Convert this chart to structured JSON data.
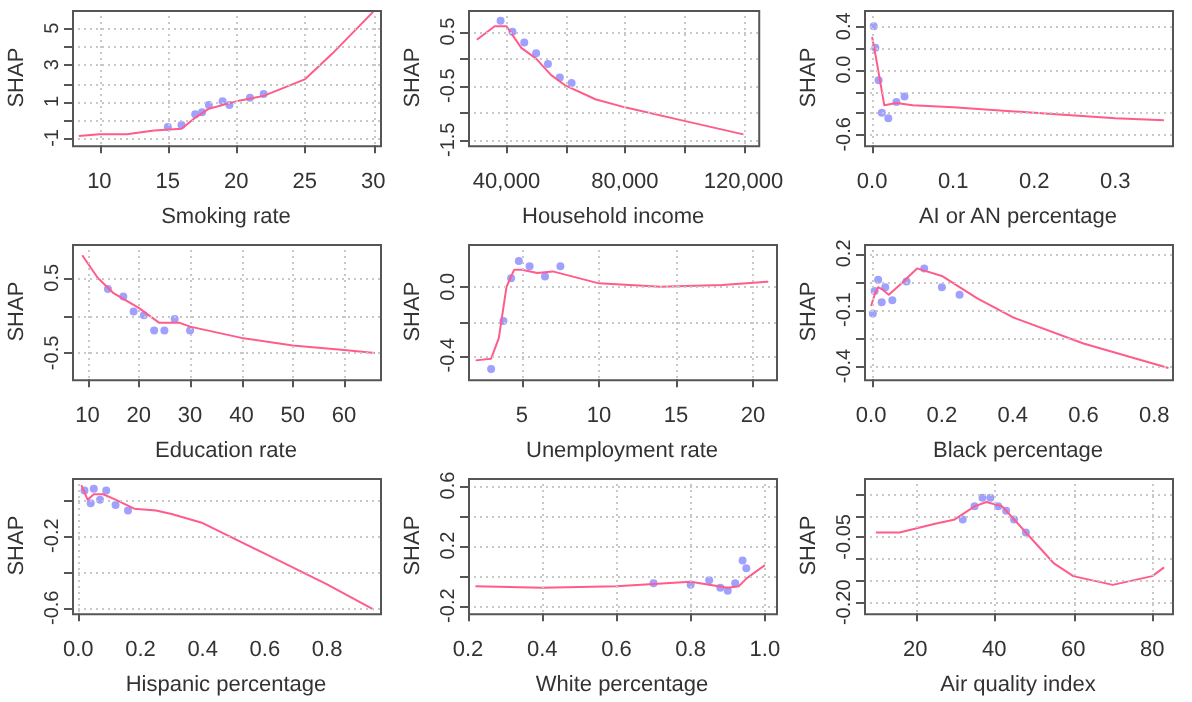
{
  "chart_data": [
    {
      "type": "line",
      "xlabel": "Smoking rate",
      "ylabel": "SHAP",
      "grid": true,
      "xlim": [
        8,
        30.5
      ],
      "xticks": [
        10,
        15,
        20,
        25,
        30
      ],
      "ylim": [
        -1.4,
        6
      ],
      "yticks": [
        -1,
        {
          "value": 0,
          "label": null
        },
        1,
        {
          "value": 2,
          "label": null
        },
        3,
        {
          "value": 4,
          "label": null
        },
        5
      ],
      "series": [
        {
          "type": "scatter",
          "color": "#a0a0ff",
          "x": [
            15,
            16,
            17,
            17.5,
            18,
            19,
            19.5,
            21,
            22
          ],
          "values": [
            -0.4,
            -0.3,
            0.3,
            0.4,
            0.8,
            1.0,
            0.8,
            1.2,
            1.4
          ]
        },
        {
          "type": "line",
          "color": "#ff5c8a",
          "x": [
            8.5,
            10,
            12,
            14,
            16,
            17,
            18,
            20,
            22,
            24,
            25,
            27,
            30
          ],
          "values": [
            -0.9,
            -0.8,
            -0.8,
            -0.6,
            -0.5,
            0.1,
            0.6,
            1.0,
            1.3,
            1.9,
            2.2,
            3.6,
            5.9
          ]
        }
      ]
    },
    {
      "type": "line",
      "xlabel": "Household income",
      "ylabel": "SHAP",
      "grid": true,
      "xlim": [
        27000,
        125000
      ],
      "xticks": [
        {
          "value": 40000,
          "label": "40,000"
        },
        {
          "value": 60000,
          "label": null
        },
        {
          "value": 80000,
          "label": "80,000"
        },
        {
          "value": 100000,
          "label": null
        },
        {
          "value": 120000,
          "label": "120,000"
        }
      ],
      "ylim": [
        -1.6,
        0.9
      ],
      "yticks": [
        -1.5,
        {
          "value": -1,
          "label": null
        },
        -0.5,
        {
          "value": 0,
          "label": null
        },
        0.5
      ],
      "series": [
        {
          "type": "scatter",
          "color": "#a0a0ff",
          "x": [
            38000,
            42000,
            46000,
            50000,
            54000,
            58000,
            62000
          ],
          "values": [
            0.7,
            0.5,
            0.3,
            0.1,
            -0.1,
            -0.35,
            -0.45
          ]
        },
        {
          "type": "line",
          "color": "#ff5c8a",
          "x": [
            30000,
            36000,
            40000,
            45000,
            50000,
            55000,
            60000,
            70000,
            80000,
            100000,
            120000
          ],
          "values": [
            0.35,
            0.6,
            0.6,
            0.2,
            0.0,
            -0.3,
            -0.5,
            -0.75,
            -0.9,
            -1.15,
            -1.4
          ]
        }
      ]
    },
    {
      "type": "line",
      "xlabel": "AI or AN percentage",
      "ylabel": "SHAP",
      "grid": true,
      "xlim": [
        -0.01,
        0.37
      ],
      "xticks": [
        {
          "value": 0,
          "label": "0.0"
        },
        0.1,
        0.2,
        0.3
      ],
      "ylim": [
        -0.7,
        0.55
      ],
      "yticks": [
        -0.6,
        {
          "value": -0.4,
          "label": null
        },
        {
          "value": -0.2,
          "label": null
        },
        {
          "value": 0,
          "label": "0.0"
        },
        {
          "value": 0.2,
          "label": null
        },
        0.4
      ],
      "series": [
        {
          "type": "scatter",
          "color": "#a0a0ff",
          "x": [
            0.002,
            0.004,
            0.008,
            0.012,
            0.02,
            0.03,
            0.04
          ],
          "values": [
            0.4,
            0.2,
            -0.1,
            -0.4,
            -0.45,
            -0.3,
            -0.25
          ]
        },
        {
          "type": "line",
          "color": "#ff5c8a",
          "x": [
            0,
            0.005,
            0.015,
            0.03,
            0.05,
            0.1,
            0.2,
            0.3,
            0.36
          ],
          "values": [
            0.3,
            0.1,
            -0.33,
            -0.31,
            -0.33,
            -0.35,
            -0.4,
            -0.45,
            -0.47
          ]
        }
      ]
    },
    {
      "type": "line",
      "xlabel": "Education rate",
      "ylabel": "SHAP",
      "grid": true,
      "xlim": [
        7,
        67
      ],
      "xticks": [
        10,
        20,
        30,
        40,
        50,
        60
      ],
      "ylim": [
        -0.85,
        0.95
      ],
      "yticks": [
        -0.5,
        {
          "value": 0,
          "label": null
        },
        0.5
      ],
      "series": [
        {
          "type": "scatter",
          "color": "#a0a0ff",
          "x": [
            14,
            17,
            19,
            21,
            23,
            25,
            27,
            30
          ],
          "values": [
            0.35,
            0.25,
            0.05,
            0.0,
            -0.2,
            -0.2,
            -0.05,
            -0.2
          ]
        },
        {
          "type": "line",
          "color": "#ff5c8a",
          "x": [
            9,
            12,
            15,
            20,
            24,
            28,
            30,
            40,
            50,
            60,
            66
          ],
          "values": [
            0.8,
            0.5,
            0.3,
            0.1,
            -0.1,
            -0.1,
            -0.15,
            -0.3,
            -0.4,
            -0.46,
            -0.5
          ]
        }
      ]
    },
    {
      "type": "line",
      "xlabel": "Unemployment rate",
      "ylabel": "SHAP",
      "grid": true,
      "xlim": [
        1.5,
        21.5
      ],
      "xticks": [
        5,
        10,
        15,
        20
      ],
      "ylim": [
        -0.54,
        0.25
      ],
      "yticks": [
        -0.4,
        {
          "value": -0.2,
          "label": null
        },
        {
          "value": 0,
          "label": "0.0"
        }
      ],
      "series": [
        {
          "type": "scatter",
          "color": "#a0a0ff",
          "x": [
            3,
            3.8,
            4.3,
            4.8,
            5.5,
            6.5,
            7.5
          ],
          "values": [
            -0.48,
            -0.2,
            0.05,
            0.15,
            0.12,
            0.06,
            0.12
          ]
        },
        {
          "type": "line",
          "color": "#ff5c8a",
          "x": [
            2,
            3,
            3.5,
            4,
            4.5,
            5,
            6,
            7,
            10,
            14,
            18,
            21
          ],
          "values": [
            -0.43,
            -0.42,
            -0.3,
            0.0,
            0.1,
            0.1,
            0.08,
            0.09,
            0.02,
            0.0,
            0.01,
            0.03
          ]
        }
      ]
    },
    {
      "type": "line",
      "xlabel": "Black percentage",
      "ylabel": "SHAP",
      "grid": true,
      "xlim": [
        -0.02,
        0.85
      ],
      "xticks": [
        {
          "value": 0,
          "label": "0.0"
        },
        0.2,
        0.4,
        0.6,
        0.8
      ],
      "ylim": [
        -0.47,
        0.25
      ],
      "yticks": [
        -0.4,
        {
          "value": -0.25,
          "label": null
        },
        -0.1,
        {
          "value": 0.05,
          "label": null
        },
        0.2
      ],
      "series": [
        {
          "type": "scatter",
          "color": "#a0a0ff",
          "x": [
            0.005,
            0.01,
            0.02,
            0.03,
            0.04,
            0.06,
            0.1,
            0.15,
            0.2,
            0.25
          ],
          "values": [
            -0.12,
            0.0,
            0.06,
            -0.06,
            0.02,
            -0.05,
            0.05,
            0.12,
            0.02,
            -0.02
          ]
        },
        {
          "type": "line",
          "color": "#ff5c8a",
          "x": [
            0,
            0.01,
            0.02,
            0.03,
            0.05,
            0.08,
            0.13,
            0.2,
            0.3,
            0.4,
            0.6,
            0.84
          ],
          "values": [
            -0.08,
            -0.02,
            0.02,
            0.01,
            -0.02,
            0.03,
            0.12,
            0.08,
            -0.04,
            -0.14,
            -0.28,
            -0.41
          ]
        }
      ]
    },
    {
      "type": "line",
      "xlabel": "Hispanic percentage",
      "ylabel": "SHAP",
      "grid": true,
      "xlim": [
        -0.02,
        0.97
      ],
      "xticks": [
        {
          "value": 0,
          "label": "0.0"
        },
        0.2,
        0.4,
        0.6,
        0.8
      ],
      "ylim": [
        -0.63,
        0.12
      ],
      "yticks": [
        -0.6,
        {
          "value": -0.4,
          "label": null
        },
        -0.2,
        {
          "value": 0,
          "label": null
        }
      ],
      "series": [
        {
          "type": "scatter",
          "color": "#a0a0ff",
          "x": [
            0.02,
            0.04,
            0.05,
            0.07,
            0.09,
            0.12,
            0.16
          ],
          "values": [
            0.05,
            -0.02,
            0.06,
            0.0,
            0.05,
            -0.03,
            -0.06
          ]
        },
        {
          "type": "line",
          "color": "#ff5c8a",
          "x": [
            0.01,
            0.03,
            0.05,
            0.08,
            0.12,
            0.18,
            0.25,
            0.3,
            0.4,
            0.6,
            0.8,
            0.95
          ],
          "values": [
            0.08,
            0.0,
            0.03,
            0.03,
            0.0,
            -0.05,
            -0.06,
            -0.08,
            -0.13,
            -0.3,
            -0.47,
            -0.61
          ]
        }
      ]
    },
    {
      "type": "line",
      "xlabel": "White percentage",
      "ylabel": "SHAP",
      "grid": true,
      "xlim": [
        0.2,
        1.03
      ],
      "xticks": [
        0.2,
        0.4,
        0.6,
        0.8,
        {
          "value": 1,
          "label": "1.0"
        }
      ],
      "ylim": [
        -0.25,
        0.65
      ],
      "yticks": [
        -0.2,
        {
          "value": 0,
          "label": null
        },
        0.2,
        {
          "value": 0.4,
          "label": null
        },
        0.6
      ],
      "series": [
        {
          "type": "scatter",
          "color": "#a0a0ff",
          "x": [
            0.7,
            0.8,
            0.85,
            0.88,
            0.9,
            0.92,
            0.94,
            0.95
          ],
          "values": [
            -0.05,
            -0.06,
            -0.03,
            -0.08,
            -0.1,
            -0.05,
            0.1,
            0.05
          ]
        },
        {
          "type": "line",
          "color": "#ff5c8a",
          "x": [
            0.22,
            0.4,
            0.6,
            0.8,
            0.9,
            0.93,
            0.95,
            1.0
          ],
          "values": [
            -0.07,
            -0.08,
            -0.07,
            -0.04,
            -0.08,
            -0.07,
            -0.02,
            0.07
          ]
        }
      ]
    },
    {
      "type": "line",
      "xlabel": "Air quality index",
      "ylabel": "SHAP",
      "grid": true,
      "xlim": [
        7,
        85
      ],
      "xticks": [
        20,
        40,
        60,
        80
      ],
      "ylim": [
        -0.225,
        0.085
      ],
      "yticks": [
        {
          "value": -0.2,
          "label": "-0.20"
        },
        {
          "value": -0.15,
          "label": null
        },
        {
          "value": -0.1,
          "label": null
        },
        {
          "value": -0.05,
          "label": "-0.05"
        },
        {
          "value": 0,
          "label": null
        },
        {
          "value": 0.05,
          "label": null
        }
      ],
      "series": [
        {
          "type": "scatter",
          "color": "#a0a0ff",
          "x": [
            32,
            35,
            37,
            39,
            41,
            43,
            45,
            48
          ],
          "values": [
            -0.01,
            0.02,
            0.04,
            0.04,
            0.02,
            0.01,
            -0.01,
            -0.04
          ]
        },
        {
          "type": "line",
          "color": "#ff5c8a",
          "x": [
            10,
            16,
            25,
            30,
            35,
            38,
            42,
            50,
            55,
            60,
            70,
            80,
            83
          ],
          "values": [
            -0.04,
            -0.04,
            -0.02,
            -0.01,
            0.02,
            0.03,
            0.02,
            -0.06,
            -0.11,
            -0.14,
            -0.16,
            -0.14,
            -0.12
          ]
        }
      ]
    }
  ]
}
